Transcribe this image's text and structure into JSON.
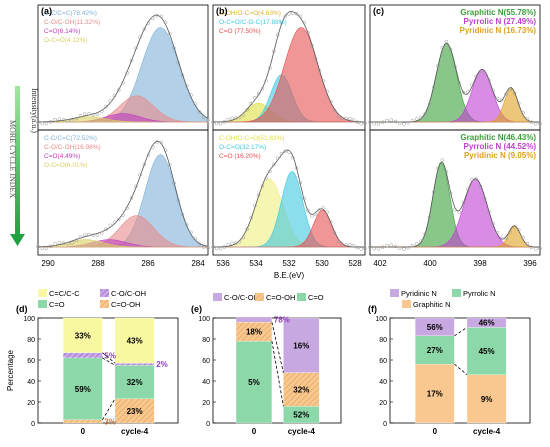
{
  "xps_panels": [
    {
      "label": "(a)",
      "xlabels": [
        "290",
        "288",
        "286",
        "284"
      ],
      "top": {
        "legend": [
          [
            "C-C/C=C(78.42%)",
            "#7fb2d8"
          ],
          [
            "C-O/C-OH(11.32%)",
            "#e88b8b"
          ],
          [
            "C=O(6.14%)",
            "#c040c0"
          ],
          [
            "O-C=O(4.12%)",
            "#d8d060"
          ]
        ]
      },
      "bottom": {
        "legend": [
          [
            "C-C/C=C(72.52%)",
            "#7fb2d8"
          ],
          [
            "C-O/C-OH(16.98%)",
            "#e88b8b"
          ],
          [
            "C=O(4.49%)",
            "#c040c0"
          ],
          [
            "O-C=O(6.01%)",
            "#d8d060"
          ]
        ]
      }
    },
    {
      "label": "(b)",
      "xlabels": [
        "536",
        "534",
        "532",
        "530",
        "528"
      ],
      "xtitle": "B.E.(eV)",
      "top": {
        "legend": [
          [
            "C-OH/O-C=O(4.63%)",
            "#e0b030"
          ],
          [
            "O-C=O/C-O-C(17.88%)",
            "#40c8e0"
          ],
          [
            "C=O (77.50%)",
            "#e85050"
          ]
        ]
      },
      "bottom": {
        "legend": [
          [
            "C-OH/O-C=O(51.63%)",
            "#e0e040"
          ],
          [
            "O-C=O(32.17%)",
            "#40c8e0"
          ],
          [
            "C=O (16.20%)",
            "#e85050"
          ]
        ]
      }
    },
    {
      "label": "(c)",
      "xlabels": [
        "402",
        "400",
        "398",
        "396"
      ],
      "top": {
        "legend": [
          [
            "Graphitic N(55.78%)",
            "#3aa03a"
          ],
          [
            "Pyrrolic N (27.49%)",
            "#c040d0"
          ],
          [
            "Pyridinic N (16.73%)",
            "#e0a020"
          ]
        ]
      },
      "bottom": {
        "legend": [
          [
            "Graphitic N(46.43%)",
            "#3aa03a"
          ],
          [
            "Pyrrolic N (44.52%)",
            "#c040d0"
          ],
          [
            "Pyridinic N (9.05%)",
            "#e0a020"
          ]
        ]
      }
    }
  ],
  "side_labels": {
    "intensity": "Intensity(a.u.)",
    "more": "MORE CYCLE INDEX"
  },
  "chart_data": [
    {
      "label": "(d)",
      "type": "bar",
      "stacked": true,
      "ylabel": "Percentage",
      "categories": [
        "0",
        "cycle-4"
      ],
      "ylim": [
        0,
        100
      ],
      "legend": [
        "C=C/C-C",
        "C-O/C-OH",
        "C=O",
        "C=O-OH"
      ],
      "series": [
        {
          "name": "C=O-OH",
          "values": [
            3,
            23
          ],
          "color": "#f8c890",
          "hatch": true
        },
        {
          "name": "C=O",
          "values": [
            59,
            32
          ],
          "color": "#8cd8a8"
        },
        {
          "name": "C-O/C-OH",
          "values": [
            5,
            2
          ],
          "color": "#c8a8e8",
          "hatch": true
        },
        {
          "name": "C=C/C-C",
          "values": [
            33,
            43
          ],
          "color": "#f8f8a0"
        }
      ],
      "labels": [
        [
          "33%",
          "43%"
        ],
        [
          "5%",
          "2%"
        ],
        [
          "59%",
          "32%"
        ],
        [
          "3%",
          "23%"
        ]
      ]
    },
    {
      "label": "(e)",
      "type": "bar",
      "stacked": true,
      "categories": [
        "0",
        "cycle-4"
      ],
      "ylim": [
        0,
        100
      ],
      "legend": [
        "C-O/C-OH",
        "C=O-OH",
        "C=O"
      ],
      "series": [
        {
          "name": "C=O",
          "values": [
            78,
            16
          ],
          "color": "#8cd8a8"
        },
        {
          "name": "C=O-OH",
          "values": [
            18,
            32
          ],
          "color": "#f8c890",
          "hatch": true
        },
        {
          "name": "C-O/C-OH",
          "values": [
            5,
            52
          ],
          "color": "#c8a8e0"
        }
      ],
      "labels": [
        [
          "78%",
          "16%"
        ],
        [
          "18%",
          "32%"
        ],
        [
          "5%",
          "52%"
        ]
      ]
    },
    {
      "label": "(f)",
      "type": "bar",
      "stacked": true,
      "categories": [
        "0",
        "cycle-4"
      ],
      "ylim": [
        0,
        100
      ],
      "legend": [
        "Pyridinic N",
        "Pyrrolic N",
        "Graphitic N"
      ],
      "series": [
        {
          "name": "Graphitic N",
          "values": [
            56,
            46
          ],
          "color": "#f8c890"
        },
        {
          "name": "Pyrrolic N",
          "values": [
            27,
            45
          ],
          "color": "#8cd8a8"
        },
        {
          "name": "Pyridinic N",
          "values": [
            17,
            9
          ],
          "color": "#c8a8e0"
        }
      ],
      "labels": [
        [
          "56%",
          "46%"
        ],
        [
          "27%",
          "45%"
        ],
        [
          "17%",
          "9%"
        ]
      ]
    }
  ],
  "yticks": [
    "0",
    "20",
    "40",
    "60",
    "80",
    "100"
  ]
}
